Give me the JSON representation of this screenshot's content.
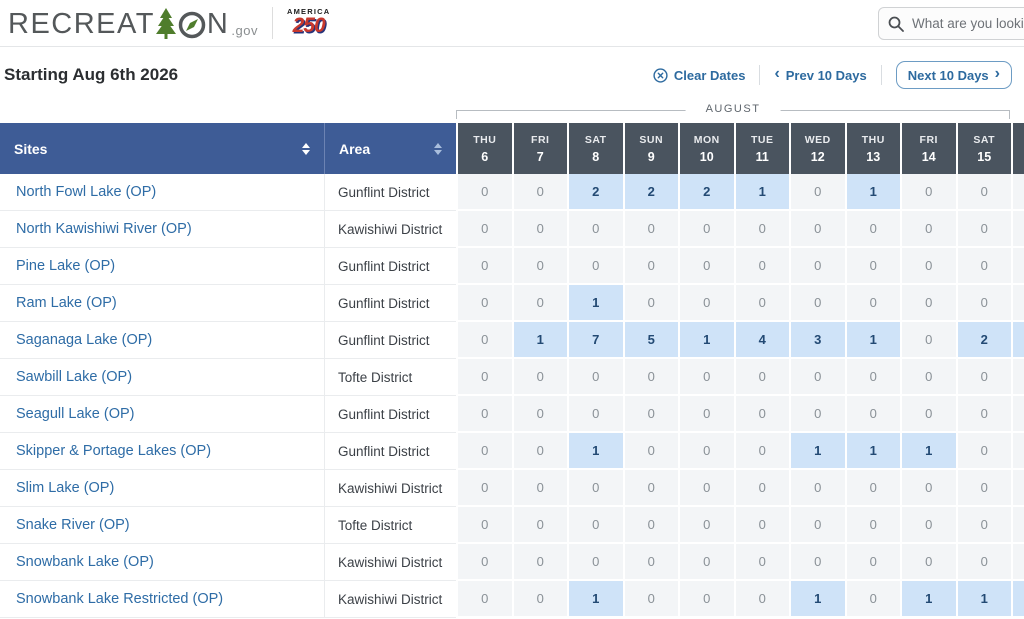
{
  "header": {
    "brand_text_1": "RECREAT",
    "brand_text_2": "N",
    "brand_suffix": ".gov",
    "america250_line1": "AMERICA",
    "america250_line2": "250",
    "search_placeholder": "What are you looking for?"
  },
  "toolbar": {
    "title": "Starting Aug 6th 2026",
    "clear_dates_label": "Clear Dates",
    "prev_label": "Prev 10 Days",
    "next_label": "Next 10 Days"
  },
  "table": {
    "month_label": "AUGUST",
    "sites_header": "Sites",
    "area_header": "Area",
    "dates": [
      {
        "day": "THU",
        "num": "6"
      },
      {
        "day": "FRI",
        "num": "7"
      },
      {
        "day": "SAT",
        "num": "8"
      },
      {
        "day": "SUN",
        "num": "9"
      },
      {
        "day": "MON",
        "num": "10"
      },
      {
        "day": "TUE",
        "num": "11"
      },
      {
        "day": "WED",
        "num": "12"
      },
      {
        "day": "THU",
        "num": "13"
      },
      {
        "day": "FRI",
        "num": "14"
      },
      {
        "day": "SAT",
        "num": "15"
      }
    ],
    "rows": [
      {
        "site": "North Fowl Lake (OP)",
        "area": "Gunflint District",
        "values": [
          0,
          0,
          2,
          2,
          2,
          1,
          0,
          1,
          0,
          0
        ],
        "overflow_highlight": false
      },
      {
        "site": "North Kawishiwi River (OP)",
        "area": "Kawishiwi District",
        "values": [
          0,
          0,
          0,
          0,
          0,
          0,
          0,
          0,
          0,
          0
        ],
        "overflow_highlight": false
      },
      {
        "site": "Pine Lake (OP)",
        "area": "Gunflint District",
        "values": [
          0,
          0,
          0,
          0,
          0,
          0,
          0,
          0,
          0,
          0
        ],
        "overflow_highlight": false
      },
      {
        "site": "Ram Lake (OP)",
        "area": "Gunflint District",
        "values": [
          0,
          0,
          1,
          0,
          0,
          0,
          0,
          0,
          0,
          0
        ],
        "overflow_highlight": false
      },
      {
        "site": "Saganaga Lake (OP)",
        "area": "Gunflint District",
        "values": [
          0,
          1,
          7,
          5,
          1,
          4,
          3,
          1,
          0,
          2
        ],
        "overflow_highlight": true
      },
      {
        "site": "Sawbill Lake (OP)",
        "area": "Tofte District",
        "values": [
          0,
          0,
          0,
          0,
          0,
          0,
          0,
          0,
          0,
          0
        ],
        "overflow_highlight": false
      },
      {
        "site": "Seagull Lake (OP)",
        "area": "Gunflint District",
        "values": [
          0,
          0,
          0,
          0,
          0,
          0,
          0,
          0,
          0,
          0
        ],
        "overflow_highlight": false
      },
      {
        "site": "Skipper & Portage Lakes (OP)",
        "area": "Gunflint District",
        "values": [
          0,
          0,
          1,
          0,
          0,
          0,
          1,
          1,
          1,
          0
        ],
        "overflow_highlight": false
      },
      {
        "site": "Slim Lake (OP)",
        "area": "Kawishiwi District",
        "values": [
          0,
          0,
          0,
          0,
          0,
          0,
          0,
          0,
          0,
          0
        ],
        "overflow_highlight": false
      },
      {
        "site": "Snake River (OP)",
        "area": "Tofte District",
        "values": [
          0,
          0,
          0,
          0,
          0,
          0,
          0,
          0,
          0,
          0
        ],
        "overflow_highlight": false
      },
      {
        "site": "Snowbank Lake (OP)",
        "area": "Kawishiwi District",
        "values": [
          0,
          0,
          0,
          0,
          0,
          0,
          0,
          0,
          0,
          0
        ],
        "overflow_highlight": false
      },
      {
        "site": "Snowbank Lake Restricted (OP)",
        "area": "Kawishiwi District",
        "values": [
          0,
          0,
          1,
          0,
          0,
          0,
          1,
          0,
          1,
          1
        ],
        "overflow_highlight": true
      }
    ]
  },
  "icons": {
    "search": "magnifier-icon",
    "clear_dates": "circle-x-icon",
    "prev": "chevron-left-icon",
    "next": "chevron-right-icon",
    "sort": "sort-arrows-icon",
    "logo_tree": "evergreen-tree-icon",
    "logo_compass": "compass-icon"
  },
  "colors": {
    "header_blue": "#3e5c96",
    "date_header_slate": "#4a545f",
    "available_cell_bg": "#cfe3f8",
    "available_cell_text": "#234a74",
    "zero_cell_bg": "#f3f5f7",
    "zero_cell_text": "#8a9197",
    "link_blue": "#2d6a9f",
    "site_link_blue": "#2e6ca6",
    "logo_green": "#4f7d2c",
    "logo_gray": "#54585a",
    "america_red": "#c8392e",
    "america_blue": "#27337a"
  }
}
